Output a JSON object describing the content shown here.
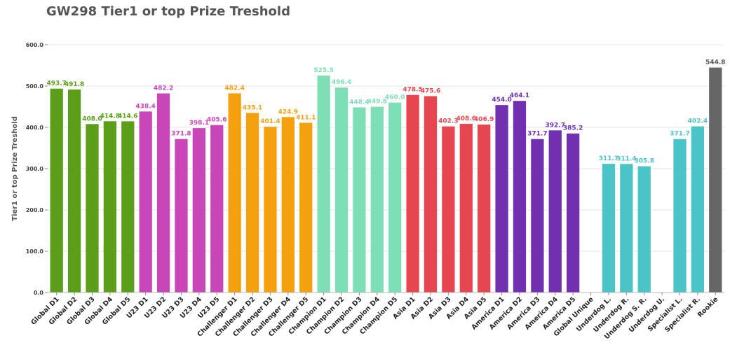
{
  "chart_data": {
    "type": "bar",
    "title": "GW298 Tier1 or top Prize Treshold",
    "xlabel": "",
    "ylabel": "Tier1 or top Prize Treshold",
    "ylim": [
      0,
      600
    ],
    "yticks": [
      "0.0",
      "100.0",
      "200.0",
      "300.0",
      "400.0",
      "500.0",
      "600.0"
    ],
    "grid": true,
    "categories": [
      "Global D1",
      "Global D2",
      "Global D3",
      "Global D4",
      "Global D5",
      "U23 D1",
      "U23 D2",
      "U23 D3",
      "U23 D4",
      "U23 D5",
      "Challenger D1",
      "Challenger D2",
      "Challenger D3",
      "Challenger D4",
      "Challenger D5",
      "Champion D1",
      "Champion D2",
      "Champion D3",
      "Champion D4",
      "Champion D5",
      "Asia D1",
      "Asia D2",
      "Asia D3",
      "Asia D4",
      "Asia D5",
      "America D1",
      "America D2",
      "America D3",
      "America D4",
      "America D5",
      "Global Unique",
      "Underdog L.",
      "Underdog R.",
      "Underdog S. R.",
      "Underdog U.",
      "Specialist L.",
      "Specialist R.",
      "Rookie"
    ],
    "values": [
      493.7,
      491.8,
      408.0,
      414.8,
      414.6,
      438.4,
      482.2,
      371.8,
      398.1,
      405.6,
      482.4,
      435.1,
      401.4,
      424.9,
      411.1,
      525.5,
      496.4,
      448.4,
      449.8,
      460.0,
      478.5,
      475.6,
      402.3,
      408.6,
      406.9,
      454.0,
      464.1,
      371.7,
      392.7,
      385.2,
      null,
      311.7,
      311.4,
      305.8,
      null,
      371.7,
      402.4,
      544.8
    ],
    "value_labels": [
      "493.7",
      "491.8",
      "408.0",
      "414.8",
      "414.6",
      "438.4",
      "482.2",
      "371.8",
      "398.1",
      "405.6",
      "482.4",
      "435.1",
      "401.4",
      "424.9",
      "411.1",
      "525.5",
      "496.4",
      "448.4",
      "449.8",
      "460.0",
      "478.5",
      "475.6",
      "402.3",
      "408.6",
      "406.9",
      "454.0",
      "464.1",
      "371.7",
      "392.7",
      "385.2",
      "",
      "311.7",
      "311.4",
      "305.8",
      "",
      "371.7",
      "402.4",
      "544.8"
    ],
    "bar_colors": [
      "#5a9e1a",
      "#5a9e1a",
      "#5a9e1a",
      "#5a9e1a",
      "#5a9e1a",
      "#c946b8",
      "#c946b8",
      "#c946b8",
      "#c946b8",
      "#c946b8",
      "#f5a00f",
      "#f5a00f",
      "#f5a00f",
      "#f5a00f",
      "#f5a00f",
      "#7edfb6",
      "#7edfb6",
      "#7edfb6",
      "#7edfb6",
      "#7edfb6",
      "#e6474f",
      "#e6474f",
      "#e6474f",
      "#e6474f",
      "#e6474f",
      "#7030b0",
      "#7030b0",
      "#7030b0",
      "#7030b0",
      "#7030b0",
      "#4bc4c8",
      "#4bc4c8",
      "#4bc4c8",
      "#4bc4c8",
      "#4bc4c8",
      "#4bc4c8",
      "#4bc4c8",
      "#666666"
    ],
    "label_colors": [
      "#5a9e1a",
      "#5a9e1a",
      "#5a9e1a",
      "#5a9e1a",
      "#5a9e1a",
      "#c946b8",
      "#c946b8",
      "#c946b8",
      "#c946b8",
      "#c946b8",
      "#f5a00f",
      "#f5a00f",
      "#f5a00f",
      "#f5a00f",
      "#f5a00f",
      "#7edfb6",
      "#7edfb6",
      "#7edfb6",
      "#7edfb6",
      "#7edfb6",
      "#e6474f",
      "#e6474f",
      "#e6474f",
      "#e6474f",
      "#e6474f",
      "#7030b0",
      "#7030b0",
      "#7030b0",
      "#7030b0",
      "#7030b0",
      "#4bc4c8",
      "#4bc4c8",
      "#4bc4c8",
      "#4bc4c8",
      "#4bc4c8",
      "#4bc4c8",
      "#4bc4c8",
      "#555555"
    ]
  }
}
